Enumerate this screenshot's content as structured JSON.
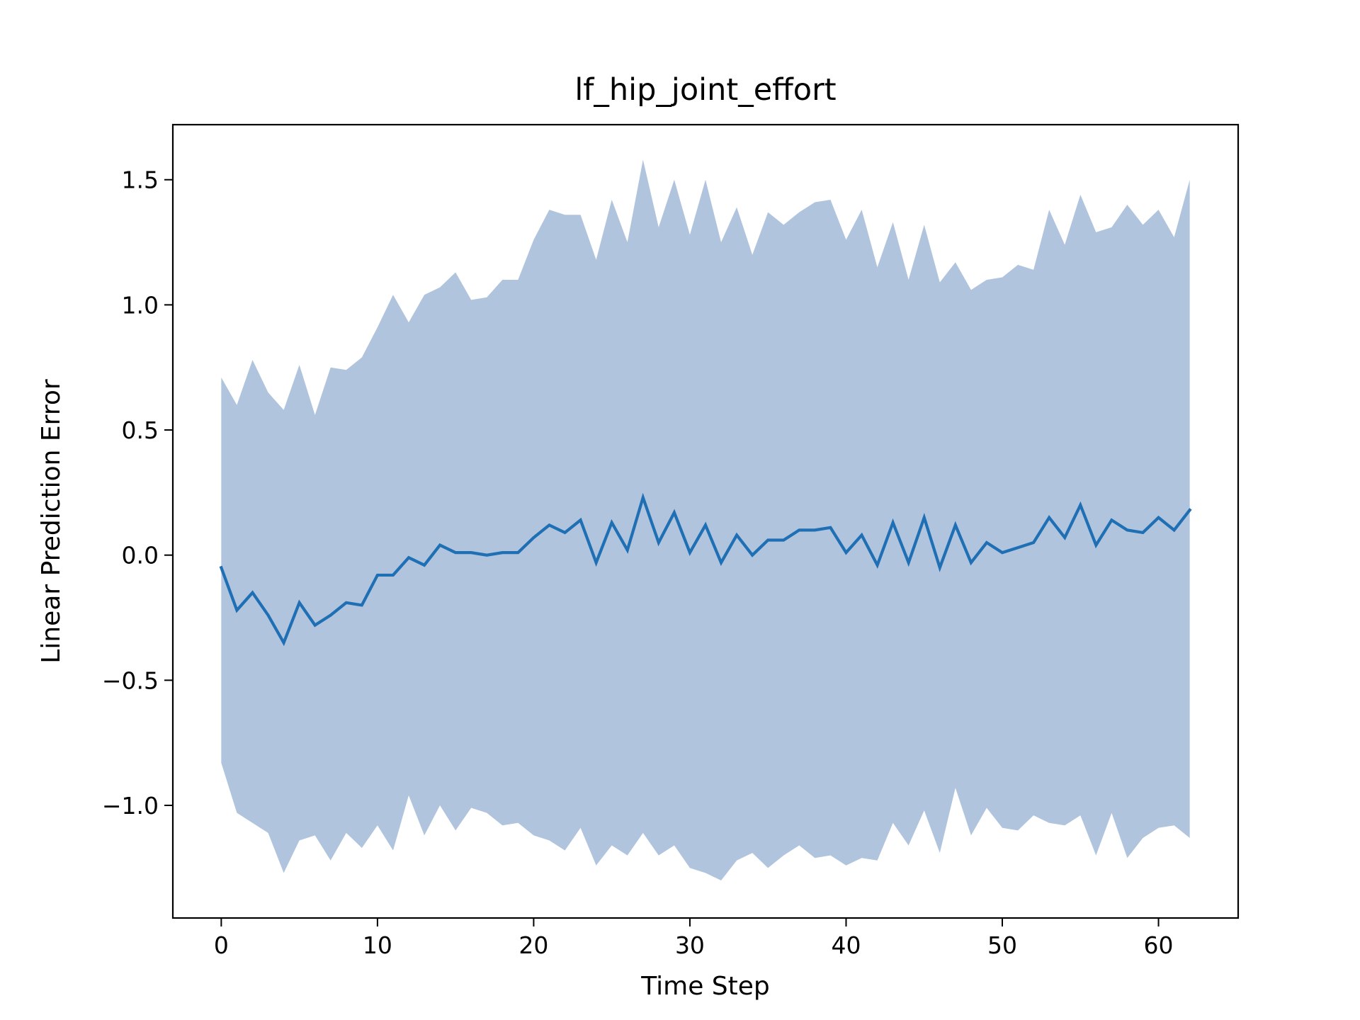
{
  "chart_data": {
    "type": "line",
    "title": "lf_hip_joint_effort",
    "xlabel": "Time Step",
    "ylabel": "Linear Prediction Error",
    "xlim": [
      -3.1,
      65.1
    ],
    "ylim": [
      -1.45,
      1.72
    ],
    "xticks": [
      0,
      10,
      20,
      30,
      40,
      50,
      60
    ],
    "xtick_labels": [
      "0",
      "10",
      "20",
      "30",
      "40",
      "50",
      "60"
    ],
    "yticks": [
      -1.0,
      -0.5,
      0.0,
      0.5,
      1.0,
      1.5
    ],
    "ytick_labels": [
      "−1.0",
      "−0.5",
      "0.0",
      "0.5",
      "1.0",
      "1.5"
    ],
    "grid": false,
    "colors": {
      "line": "#1f6fb4",
      "band": "#b0c4de"
    },
    "series": [
      {
        "kind": "line",
        "x": [
          0,
          1,
          2,
          3,
          4,
          5,
          6,
          7,
          8,
          9,
          10,
          11,
          12,
          13,
          14,
          15,
          16,
          17,
          18,
          19,
          20,
          21,
          22,
          23,
          24,
          25,
          26,
          27,
          28,
          29,
          30,
          31,
          32,
          33,
          34,
          35,
          36,
          37,
          38,
          39,
          40,
          41,
          42,
          43,
          44,
          45,
          46,
          47,
          48,
          49,
          50,
          51,
          52,
          53,
          54,
          55,
          56,
          57,
          58,
          59,
          60,
          61,
          62
        ],
        "values": [
          -0.05,
          -0.22,
          -0.15,
          -0.24,
          -0.35,
          -0.19,
          -0.28,
          -0.24,
          -0.19,
          -0.2,
          -0.08,
          -0.08,
          -0.01,
          -0.04,
          0.04,
          0.01,
          0.01,
          0.0,
          0.01,
          0.01,
          0.07,
          0.12,
          0.09,
          0.14,
          -0.03,
          0.13,
          0.02,
          0.23,
          0.05,
          0.17,
          0.01,
          0.12,
          -0.03,
          0.08,
          0.0,
          0.06,
          0.06,
          0.1,
          0.1,
          0.11,
          0.01,
          0.08,
          -0.04,
          0.13,
          -0.03,
          0.15,
          -0.05,
          0.12,
          -0.03,
          0.05,
          0.01,
          0.03,
          0.05,
          0.15,
          0.07,
          0.2,
          0.04,
          0.14,
          0.1,
          0.09,
          0.15,
          0.1,
          0.18
        ]
      },
      {
        "kind": "band",
        "x": [
          0,
          1,
          2,
          3,
          4,
          5,
          6,
          7,
          8,
          9,
          10,
          11,
          12,
          13,
          14,
          15,
          16,
          17,
          18,
          19,
          20,
          21,
          22,
          23,
          24,
          25,
          26,
          27,
          28,
          29,
          30,
          31,
          32,
          33,
          34,
          35,
          36,
          37,
          38,
          39,
          40,
          41,
          42,
          43,
          44,
          45,
          46,
          47,
          48,
          49,
          50,
          51,
          52,
          53,
          54,
          55,
          56,
          57,
          58,
          59,
          60,
          61,
          62
        ],
        "upper": [
          0.71,
          0.6,
          0.78,
          0.65,
          0.58,
          0.76,
          0.56,
          0.75,
          0.74,
          0.79,
          0.91,
          1.04,
          0.93,
          1.04,
          1.07,
          1.13,
          1.02,
          1.03,
          1.1,
          1.1,
          1.26,
          1.38,
          1.36,
          1.36,
          1.18,
          1.42,
          1.25,
          1.58,
          1.31,
          1.5,
          1.28,
          1.5,
          1.25,
          1.39,
          1.2,
          1.37,
          1.32,
          1.37,
          1.41,
          1.42,
          1.26,
          1.38,
          1.15,
          1.33,
          1.1,
          1.32,
          1.09,
          1.17,
          1.06,
          1.1,
          1.11,
          1.16,
          1.14,
          1.38,
          1.24,
          1.44,
          1.29,
          1.31,
          1.4,
          1.32,
          1.38,
          1.27,
          1.5
        ],
        "lower": [
          -0.83,
          -1.03,
          -1.07,
          -1.11,
          -1.27,
          -1.14,
          -1.12,
          -1.22,
          -1.11,
          -1.17,
          -1.08,
          -1.18,
          -0.96,
          -1.12,
          -1.0,
          -1.1,
          -1.01,
          -1.03,
          -1.08,
          -1.07,
          -1.12,
          -1.14,
          -1.18,
          -1.09,
          -1.24,
          -1.16,
          -1.2,
          -1.11,
          -1.2,
          -1.16,
          -1.25,
          -1.27,
          -1.3,
          -1.22,
          -1.19,
          -1.25,
          -1.2,
          -1.16,
          -1.21,
          -1.2,
          -1.24,
          -1.21,
          -1.22,
          -1.07,
          -1.16,
          -1.02,
          -1.19,
          -0.93,
          -1.12,
          -1.01,
          -1.09,
          -1.1,
          -1.04,
          -1.07,
          -1.08,
          -1.04,
          -1.2,
          -1.03,
          -1.21,
          -1.13,
          -1.09,
          -1.08,
          -1.13
        ]
      }
    ]
  }
}
